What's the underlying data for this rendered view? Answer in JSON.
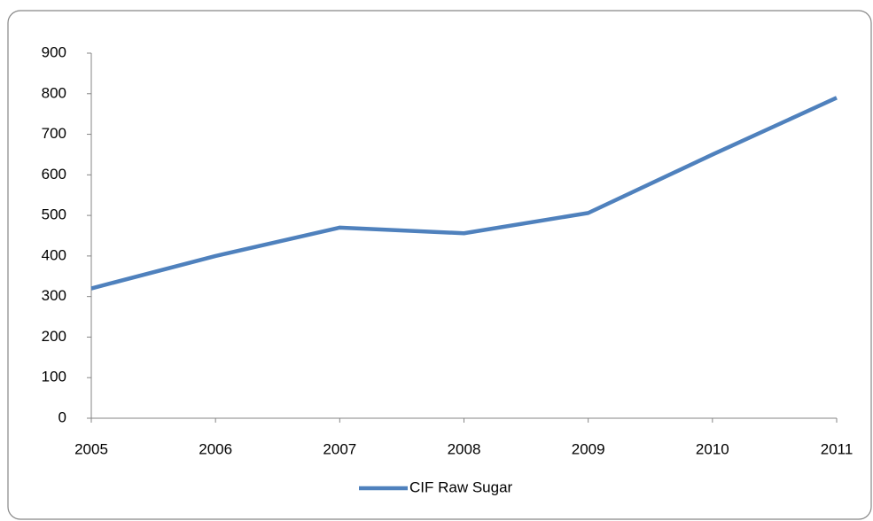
{
  "chart_data": {
    "type": "line",
    "categories": [
      "2005",
      "2006",
      "2007",
      "2008",
      "2009",
      "2010",
      "2011"
    ],
    "series": [
      {
        "name": "CIF Raw Sugar",
        "color": "#4f81bd",
        "values": [
          320,
          400,
          470,
          456,
          506,
          650,
          790
        ]
      }
    ],
    "ylim": [
      0,
      900
    ],
    "yticks": [
      0,
      100,
      200,
      300,
      400,
      500,
      600,
      700,
      800,
      900
    ],
    "grid": false,
    "legend": "bottom"
  }
}
